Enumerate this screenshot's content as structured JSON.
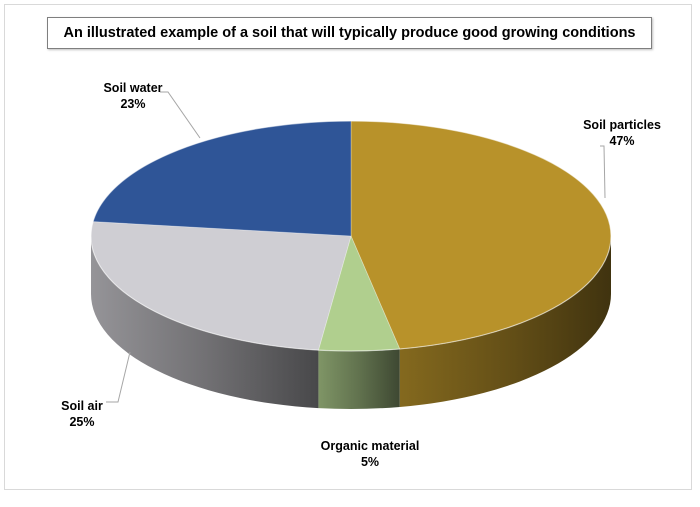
{
  "chart_data": {
    "type": "pie",
    "title": "An illustrated example of a soil that will typically produce good growing conditions",
    "slices": [
      {
        "name": "Soil particles",
        "value": 47,
        "label": "47%",
        "color": "#b8922a"
      },
      {
        "name": "Organic material",
        "value": 5,
        "label": "5%",
        "color": "#b0cf8e"
      },
      {
        "name": "Soil air",
        "value": 25,
        "label": "25%",
        "color": "#cfced3"
      },
      {
        "name": "Soil water",
        "value": 23,
        "label": "23%",
        "color": "#2f5597"
      }
    ],
    "style": "3d",
    "legend": "none"
  }
}
